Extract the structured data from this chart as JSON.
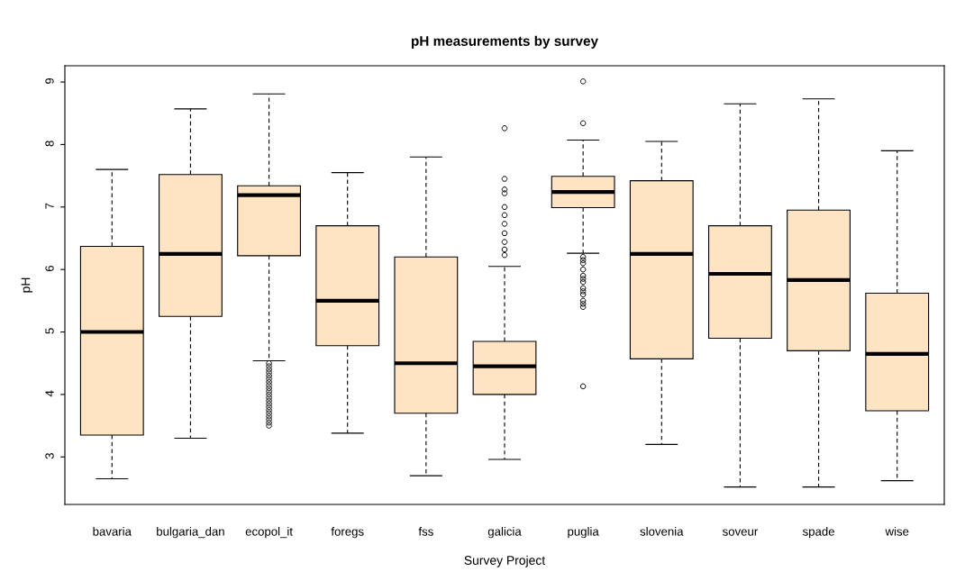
{
  "chart_data": {
    "type": "box",
    "title": "pH measurements by survey",
    "xlabel": "Survey Project",
    "ylabel": "pH",
    "categories": [
      "bavaria",
      "bulgaria_dan",
      "ecopol_it",
      "foregs",
      "fss",
      "galicia",
      "puglia",
      "slovenia",
      "soveur",
      "spade",
      "wise"
    ],
    "color": "#ffe4c4",
    "boxes": [
      {
        "low": 2.65,
        "q1": 3.35,
        "median": 5.0,
        "q3": 6.37,
        "high": 7.6
      },
      {
        "low": 3.3,
        "q1": 5.25,
        "median": 6.25,
        "q3": 7.52,
        "high": 8.57
      },
      {
        "low": 4.54,
        "q1": 6.22,
        "median": 7.19,
        "q3": 7.34,
        "high": 8.81,
        "outliers": [
          4.5,
          4.45,
          4.4,
          4.35,
          4.3,
          4.25,
          4.2,
          4.15,
          4.1,
          4.05,
          4.0,
          3.95,
          3.9,
          3.85,
          3.8,
          3.75,
          3.7,
          3.65,
          3.6,
          3.55,
          3.5
        ]
      },
      {
        "low": 3.38,
        "q1": 4.78,
        "median": 5.5,
        "q3": 6.7,
        "high": 7.55
      },
      {
        "low": 2.7,
        "q1": 3.7,
        "median": 4.5,
        "q3": 6.2,
        "high": 7.8
      },
      {
        "low": 2.96,
        "q1": 4.0,
        "median": 4.45,
        "q3": 4.85,
        "high": 6.05,
        "outliers": [
          8.26,
          7.45,
          7.28,
          7.22,
          7.0,
          6.87,
          6.73,
          6.58,
          6.44,
          6.32,
          6.23
        ]
      },
      {
        "low": 6.26,
        "q1": 6.99,
        "median": 7.24,
        "q3": 7.49,
        "high": 8.07,
        "outliers": [
          9.01,
          8.34,
          6.2,
          6.15,
          6.1,
          6.0,
          5.9,
          5.85,
          5.8,
          5.7,
          5.65,
          5.6,
          5.5,
          5.45,
          5.4,
          4.13
        ]
      },
      {
        "low": 3.2,
        "q1": 4.57,
        "median": 6.25,
        "q3": 7.42,
        "high": 8.05
      },
      {
        "low": 2.52,
        "q1": 4.9,
        "median": 5.93,
        "q3": 6.7,
        "high": 8.65
      },
      {
        "low": 2.52,
        "q1": 4.7,
        "median": 5.83,
        "q3": 6.95,
        "high": 8.73
      },
      {
        "low": 2.62,
        "q1": 3.74,
        "median": 4.65,
        "q3": 5.62,
        "high": 7.9
      }
    ],
    "ylim": [
      2.24,
      9.26
    ],
    "yticks": [
      3,
      4,
      5,
      6,
      7,
      8,
      9
    ],
    "grid": false,
    "legend": false
  }
}
